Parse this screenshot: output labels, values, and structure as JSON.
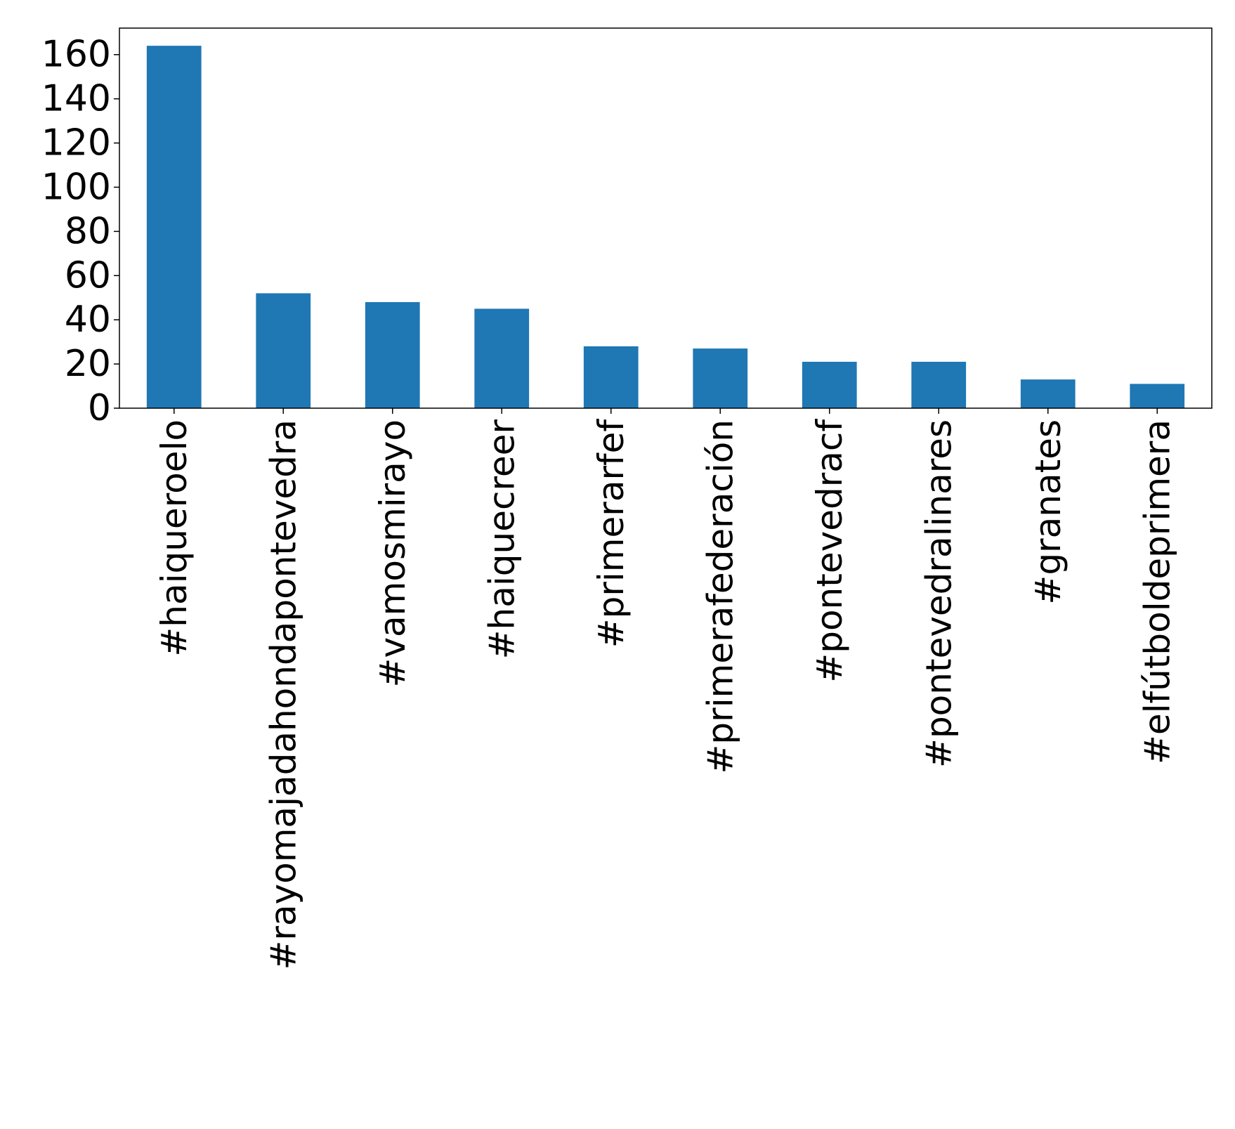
{
  "chart_data": {
    "type": "bar",
    "title": "",
    "xlabel": "",
    "ylabel": "",
    "categories": [
      "#haiqueroelo",
      "#rayomajadahondapontevedra",
      "#vamosmirayo",
      "#haiquecreer",
      "#primerarfef",
      "#primerafederación",
      "#pontevedracf",
      "#pontevedralinares",
      "#granates",
      "#elfútboldeprimera"
    ],
    "values": [
      164,
      52,
      48,
      45,
      28,
      27,
      21,
      21,
      13,
      11
    ],
    "ylim": [
      0,
      172
    ],
    "yticks": [
      0,
      20,
      40,
      60,
      80,
      100,
      120,
      140,
      160
    ],
    "ytick_labels": [
      "0",
      "20",
      "40",
      "60",
      "80",
      "100",
      "120",
      "140",
      "160"
    ],
    "bar_color": "#1f77b4",
    "grid": false,
    "legend": "none"
  }
}
